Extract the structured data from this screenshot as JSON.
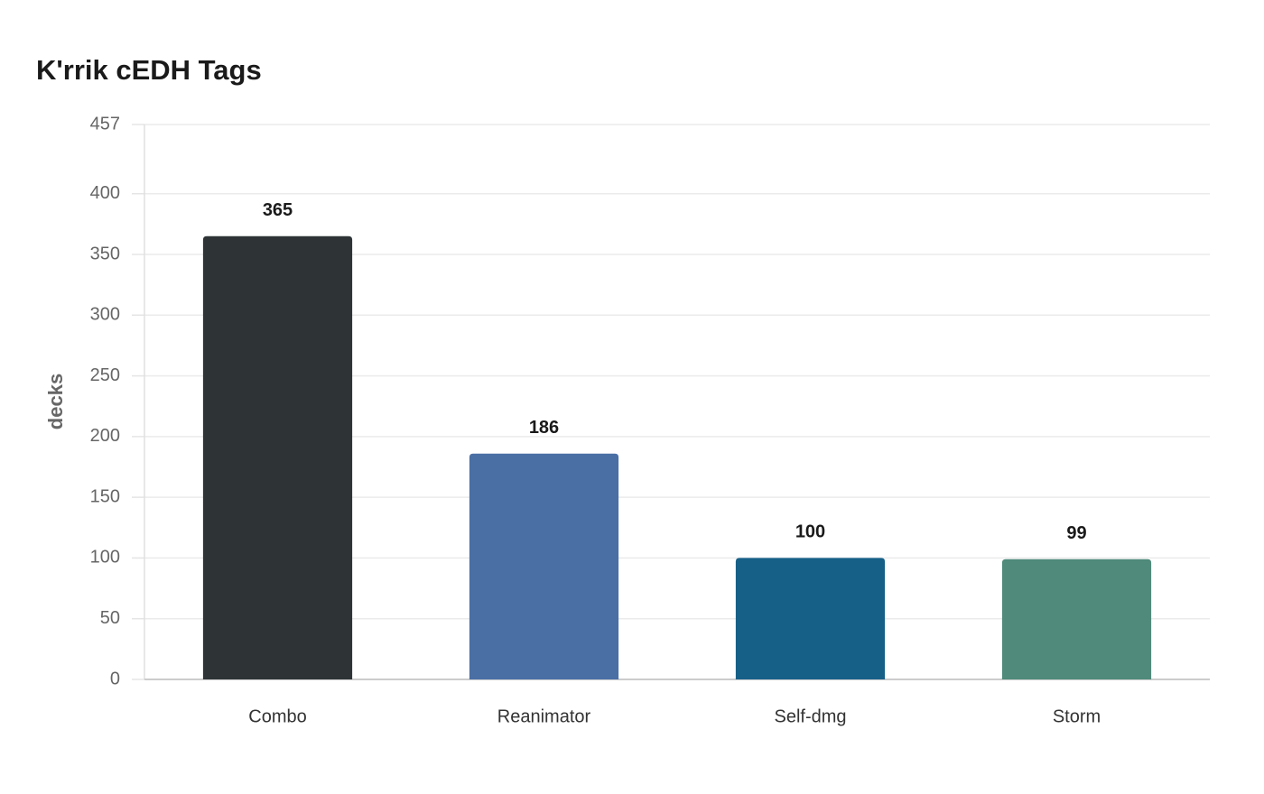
{
  "chart_data": {
    "type": "bar",
    "title": "K'rrik cEDH Tags",
    "y_label": "decks",
    "categories": [
      "Combo",
      "Reanimator",
      "Self-dmg",
      "Storm"
    ],
    "values": [
      365,
      186,
      100,
      99
    ],
    "colors": [
      "#2e3436",
      "#4a6fa5",
      "#166088",
      "#4f8a7a"
    ],
    "ylim": [
      0,
      457
    ],
    "yticks": [
      0,
      50,
      100,
      150,
      200,
      250,
      300,
      350,
      400,
      457
    ],
    "grid": true
  }
}
